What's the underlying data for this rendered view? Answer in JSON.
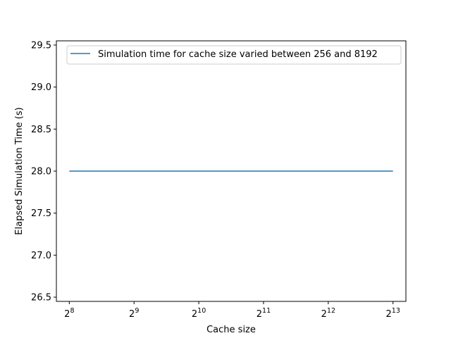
{
  "chart_data": {
    "type": "line",
    "xlabel": "Cache size",
    "ylabel": "Elapsed Simulation Time (s)",
    "x_scale": "log2",
    "xlim": [
      222.9,
      9405.2
    ],
    "ylim": [
      26.45,
      29.55
    ],
    "x_ticks": [
      {
        "value": 256,
        "base": "2",
        "exp": "8"
      },
      {
        "value": 512,
        "base": "2",
        "exp": "9"
      },
      {
        "value": 1024,
        "base": "2",
        "exp": "10"
      },
      {
        "value": 2048,
        "base": "2",
        "exp": "11"
      },
      {
        "value": 4096,
        "base": "2",
        "exp": "12"
      },
      {
        "value": 8192,
        "base": "2",
        "exp": "13"
      }
    ],
    "y_ticks": [
      {
        "value": 26.5,
        "label": "26.5"
      },
      {
        "value": 27.0,
        "label": "27.0"
      },
      {
        "value": 27.5,
        "label": "27.5"
      },
      {
        "value": 28.0,
        "label": "28.0"
      },
      {
        "value": 28.5,
        "label": "28.5"
      },
      {
        "value": 29.0,
        "label": "29.0"
      },
      {
        "value": 29.5,
        "label": "29.5"
      }
    ],
    "series": [
      {
        "name": "Simulation time for cache size varied between 256 and 8192",
        "color": "#1f77b4",
        "x": [
          256,
          512,
          1024,
          2048,
          4096,
          8192
        ],
        "y": [
          28.0,
          28.0,
          28.0,
          28.0,
          28.0,
          28.0
        ]
      }
    ],
    "legend_position": "top-right",
    "grid": false
  }
}
